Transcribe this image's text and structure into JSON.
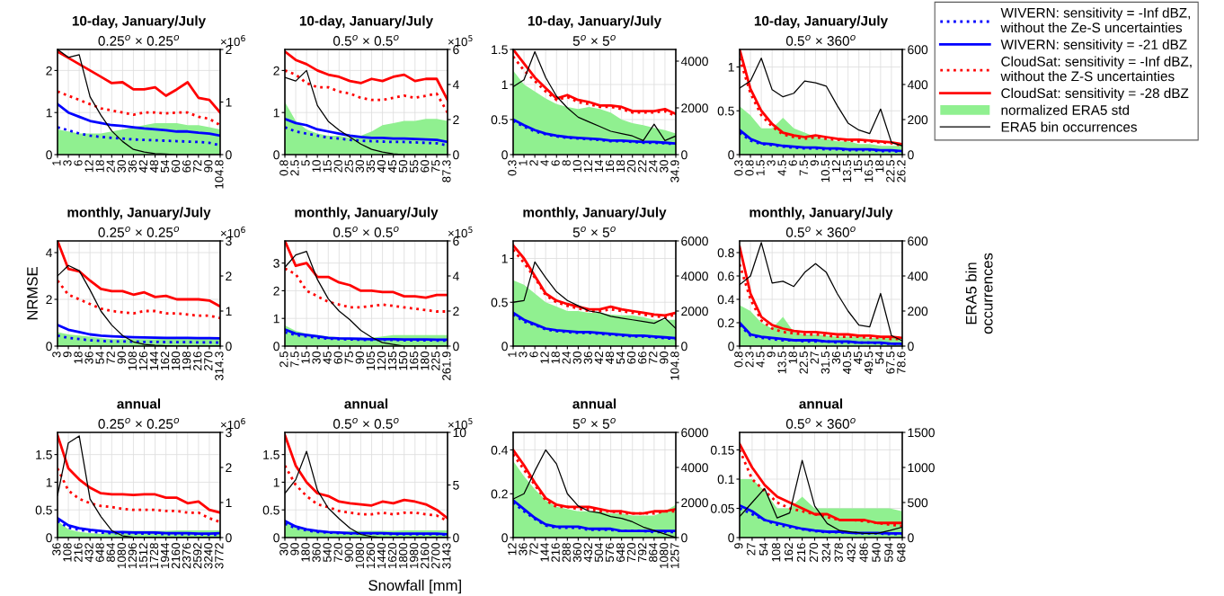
{
  "chart_data": [
    {
      "type": "line",
      "title": "10-day, January/July",
      "subtitle": "0.25$^{o}$ × 0.25$^{o}$",
      "annotations": [
        "×10$^{6}$"
      ],
      "categories": [
        "1",
        "3",
        "6",
        "12",
        "18",
        "24",
        "30",
        "36",
        "42",
        "48",
        "54",
        "60",
        "66",
        "72",
        "90",
        "104.8"
      ],
      "ylim": [
        0,
        2.5
      ],
      "yticks": [
        0,
        1,
        2
      ],
      "y2lim": [
        0,
        2
      ],
      "y2ticks": [
        0,
        1,
        2
      ],
      "grid": true,
      "series": [
        {
          "line_style": "dotted",
          "color": "#0000ff",
          "values": [
            0.65,
            0.58,
            0.5,
            0.45,
            0.42,
            0.4,
            0.38,
            0.36,
            0.35,
            0.34,
            0.33,
            0.32,
            0.31,
            0.3,
            0.28,
            0.22
          ]
        },
        {
          "line_style": "solid",
          "color": "#0000ff",
          "values": [
            1.2,
            1.0,
            0.9,
            0.8,
            0.75,
            0.7,
            0.68,
            0.65,
            0.62,
            0.6,
            0.58,
            0.55,
            0.55,
            0.52,
            0.5,
            0.45
          ]
        },
        {
          "line_style": "dotted",
          "color": "#ff0000",
          "values": [
            1.5,
            1.4,
            1.3,
            1.2,
            1.1,
            1.05,
            1.0,
            0.95,
            1.0,
            1.0,
            0.98,
            1.0,
            1.0,
            0.9,
            0.85,
            0.7
          ]
        },
        {
          "line_style": "solid",
          "color": "#ff0000",
          "values": [
            2.45,
            2.3,
            2.15,
            2.0,
            1.85,
            1.7,
            1.72,
            1.55,
            1.55,
            1.6,
            1.4,
            1.55,
            1.72,
            1.35,
            1.3,
            1.0
          ]
        },
        {
          "type": "area",
          "color": "#90f090",
          "values": [
            0.6,
            0.55,
            0.5,
            0.5,
            0.5,
            0.55,
            0.6,
            0.65,
            0.7,
            0.75,
            0.75,
            0.75,
            0.7,
            0.7,
            0.65,
            0.6
          ]
        },
        {
          "line_style": "solid",
          "color": "#000000",
          "axis": "y2",
          "values": [
            2.0,
            1.85,
            1.9,
            1.1,
            0.75,
            0.45,
            0.25,
            0.1,
            0.05,
            0.02,
            0.01,
            0,
            0,
            0,
            0,
            0
          ]
        }
      ]
    },
    {
      "type": "line",
      "title": "10-day, January/July",
      "subtitle": "0.5$^{o}$ × 0.5$^{o}$",
      "annotations": [
        "×10$^{5}$"
      ],
      "categories": [
        "0.8",
        "2.5",
        "5",
        "10",
        "15",
        "20",
        "25",
        "30",
        "35",
        "40",
        "45",
        "50",
        "55",
        "60",
        "75",
        "87.3"
      ],
      "ylim": [
        0,
        2.5
      ],
      "yticks": [
        0,
        1,
        2
      ],
      "y2lim": [
        0,
        6
      ],
      "y2ticks": [
        0,
        2,
        4,
        6
      ],
      "grid": true,
      "series": [
        {
          "line_style": "dotted",
          "color": "#0000ff",
          "values": [
            0.65,
            0.55,
            0.5,
            0.45,
            0.4,
            0.38,
            0.35,
            0.33,
            0.32,
            0.31,
            0.3,
            0.3,
            0.29,
            0.28,
            0.27,
            0.22
          ]
        },
        {
          "line_style": "solid",
          "color": "#0000ff",
          "values": [
            0.85,
            0.75,
            0.7,
            0.6,
            0.55,
            0.5,
            0.45,
            0.42,
            0.4,
            0.4,
            0.38,
            0.38,
            0.37,
            0.36,
            0.35,
            0.3
          ]
        },
        {
          "line_style": "dotted",
          "color": "#ff0000",
          "values": [
            2.0,
            1.9,
            1.7,
            1.6,
            1.6,
            1.5,
            1.45,
            1.35,
            1.3,
            1.3,
            1.35,
            1.4,
            1.35,
            1.4,
            1.45,
            1.0
          ]
        },
        {
          "line_style": "solid",
          "color": "#ff0000",
          "values": [
            2.45,
            2.25,
            2.15,
            2.0,
            1.9,
            1.85,
            1.75,
            1.7,
            1.8,
            1.75,
            1.85,
            1.9,
            1.75,
            1.8,
            1.8,
            1.3
          ]
        },
        {
          "type": "area",
          "color": "#90f090",
          "values": [
            1.25,
            0.8,
            0.6,
            0.5,
            0.45,
            0.45,
            0.4,
            0.45,
            0.55,
            0.7,
            0.75,
            0.8,
            0.8,
            0.85,
            0.85,
            0.8
          ]
        },
        {
          "line_style": "solid",
          "color": "#000000",
          "axis": "y2",
          "values": [
            4.4,
            4.2,
            4.8,
            2.8,
            1.9,
            1.4,
            1.0,
            0.6,
            0.3,
            0.15,
            0.05,
            0,
            0,
            0,
            0,
            0
          ]
        }
      ]
    },
    {
      "type": "line",
      "title": "10-day, January/July",
      "subtitle": "5$^{o}$ × 5$^{o}$",
      "categories": [
        "0.3",
        "1",
        "2",
        "4",
        "6",
        "8",
        "10",
        "12",
        "14",
        "16",
        "18",
        "20",
        "22",
        "24",
        "30",
        "34.9"
      ],
      "ylim": [
        0,
        1.5
      ],
      "yticks": [
        0,
        0.5,
        1,
        1.5
      ],
      "y2lim": [
        0,
        4500
      ],
      "y2ticks": [
        0,
        2000,
        4000
      ],
      "grid": true,
      "series": [
        {
          "line_style": "dotted",
          "color": "#0000ff",
          "values": [
            0.48,
            0.4,
            0.33,
            0.29,
            0.26,
            0.24,
            0.23,
            0.22,
            0.21,
            0.19,
            0.19,
            0.18,
            0.17,
            0.17,
            0.16,
            0.15
          ]
        },
        {
          "line_style": "solid",
          "color": "#0000ff",
          "values": [
            0.5,
            0.42,
            0.35,
            0.3,
            0.27,
            0.25,
            0.24,
            0.23,
            0.22,
            0.2,
            0.2,
            0.19,
            0.18,
            0.18,
            0.17,
            0.16
          ]
        },
        {
          "line_style": "dotted",
          "color": "#ff0000",
          "values": [
            1.4,
            1.2,
            1.05,
            0.9,
            0.78,
            0.82,
            0.75,
            0.72,
            0.68,
            0.68,
            0.65,
            0.6,
            0.6,
            0.6,
            0.62,
            0.55
          ]
        },
        {
          "line_style": "solid",
          "color": "#ff0000",
          "values": [
            1.5,
            1.3,
            1.1,
            0.95,
            0.8,
            0.85,
            0.78,
            0.75,
            0.7,
            0.7,
            0.68,
            0.62,
            0.62,
            0.62,
            0.65,
            0.58
          ]
        },
        {
          "type": "area",
          "color": "#90f090",
          "values": [
            1.2,
            1.0,
            0.9,
            0.8,
            0.72,
            0.68,
            0.65,
            0.68,
            0.65,
            0.6,
            0.5,
            0.45,
            0.42,
            0.38,
            0.35,
            0.3
          ]
        },
        {
          "line_style": "solid",
          "color": "#000000",
          "axis": "y2",
          "values": [
            2900,
            3200,
            4400,
            3300,
            2500,
            2000,
            1600,
            1400,
            1200,
            1000,
            900,
            800,
            600,
            1300,
            600,
            800
          ]
        }
      ]
    },
    {
      "type": "line",
      "title": "10-day, January/July",
      "subtitle": "0.5$^{o}$ × 360$^{o}$",
      "legend": "right",
      "categories": [
        "0.3",
        "0.8",
        "1.5",
        "3",
        "4.5",
        "6",
        "7.5",
        "9",
        "10.5",
        "12",
        "13.5",
        "15",
        "16.5",
        "18",
        "22.5",
        "26.2"
      ],
      "ylim": [
        0,
        1.2
      ],
      "yticks": [
        0,
        0.5,
        1
      ],
      "y2lim": [
        0,
        600
      ],
      "y2ticks": [
        0,
        200,
        400,
        600
      ],
      "grid": true,
      "series": [
        {
          "name": "WIVERN: sensitivity = -Inf dBZ,\nwithout the Ze-S uncertainties",
          "line_style": "dotted",
          "color": "#0000ff",
          "values": [
            0.25,
            0.16,
            0.12,
            0.11,
            0.09,
            0.08,
            0.07,
            0.07,
            0.06,
            0.06,
            0.05,
            0.05,
            0.05,
            0.04,
            0.04,
            0.03
          ]
        },
        {
          "name": "WIVERN: sensitivity = -21 dBZ",
          "line_style": "solid",
          "color": "#0000ff",
          "values": [
            0.28,
            0.18,
            0.13,
            0.12,
            0.1,
            0.09,
            0.08,
            0.08,
            0.07,
            0.07,
            0.06,
            0.06,
            0.06,
            0.05,
            0.05,
            0.04
          ]
        },
        {
          "name": "CloudSat: sensitivity = -Inf dBZ,\nwithout the Z-S uncertainties",
          "line_style": "dotted",
          "color": "#ff0000",
          "values": [
            1.1,
            0.7,
            0.45,
            0.32,
            0.23,
            0.2,
            0.18,
            0.2,
            0.18,
            0.17,
            0.16,
            0.15,
            0.15,
            0.14,
            0.13,
            0.1
          ]
        },
        {
          "name": "CloudSat: sensitivity = -28 dBZ",
          "line_style": "solid",
          "color": "#ff0000",
          "values": [
            1.2,
            0.75,
            0.5,
            0.35,
            0.25,
            0.22,
            0.2,
            0.22,
            0.2,
            0.18,
            0.17,
            0.17,
            0.16,
            0.15,
            0.14,
            0.12
          ]
        },
        {
          "name": "normalized ERA5 std",
          "type": "area",
          "color": "#90f090",
          "values": [
            0.55,
            0.45,
            0.3,
            0.3,
            0.42,
            0.3,
            0.25,
            0.2,
            0.18,
            0.15,
            0.15,
            0.12,
            0.12,
            0.1,
            0.1,
            0.1
          ]
        },
        {
          "name": "ERA5 bin occurrences",
          "line_style": "solid",
          "color": "#000000",
          "axis": "y2",
          "values": [
            380,
            420,
            550,
            370,
            330,
            350,
            420,
            410,
            390,
            280,
            180,
            140,
            120,
            260,
            70,
            50
          ]
        }
      ]
    },
    {
      "type": "line",
      "title": "monthly, January/July",
      "subtitle": "0.25$^{o}$ × 0.25$^{o}$",
      "ylabel": "NRMSE",
      "annotations": [
        "×10$^{6}$"
      ],
      "categories": [
        "3",
        "9",
        "18",
        "36",
        "54",
        "72",
        "90",
        "108",
        "126",
        "144",
        "162",
        "180",
        "198",
        "216",
        "270",
        "314.3"
      ],
      "ylim": [
        0,
        4.5
      ],
      "yticks": [
        0,
        2,
        4
      ],
      "y2lim": [
        0,
        3
      ],
      "y2ticks": [
        0,
        1,
        2,
        3
      ],
      "grid": true,
      "series": [
        {
          "line_style": "dotted",
          "color": "#0000ff",
          "values": [
            0.45,
            0.35,
            0.3,
            0.25,
            0.22,
            0.2,
            0.2,
            0.19,
            0.18,
            0.18,
            0.17,
            0.17,
            0.17,
            0.16,
            0.16,
            0.15
          ]
        },
        {
          "line_style": "solid",
          "color": "#0000ff",
          "values": [
            0.9,
            0.7,
            0.6,
            0.5,
            0.45,
            0.42,
            0.4,
            0.38,
            0.37,
            0.36,
            0.35,
            0.35,
            0.35,
            0.34,
            0.34,
            0.33
          ]
        },
        {
          "line_style": "dotted",
          "color": "#ff0000",
          "values": [
            2.8,
            2.2,
            2.0,
            1.8,
            1.6,
            1.5,
            1.45,
            1.4,
            1.5,
            1.5,
            1.4,
            1.4,
            1.35,
            1.3,
            1.3,
            1.2
          ]
        },
        {
          "line_style": "solid",
          "color": "#ff0000",
          "values": [
            4.5,
            3.3,
            3.2,
            2.8,
            2.45,
            2.35,
            2.35,
            2.2,
            2.3,
            2.1,
            2.15,
            2.0,
            2.0,
            2.0,
            1.95,
            1.7
          ]
        },
        {
          "type": "area",
          "color": "#90f090",
          "values": [
            0.6,
            0.5,
            0.45,
            0.4,
            0.35,
            0.3,
            0.3,
            0.3,
            0.3,
            0.3,
            0.35,
            0.35,
            0.35,
            0.35,
            0.35,
            0.35
          ]
        },
        {
          "line_style": "solid",
          "color": "#000000",
          "axis": "y2",
          "values": [
            2.0,
            2.3,
            2.15,
            1.6,
            1.0,
            0.6,
            0.3,
            0.12,
            0.05,
            0.02,
            0.01,
            0,
            0,
            0,
            0,
            0
          ]
        }
      ]
    },
    {
      "type": "line",
      "title": "monthly, January/July",
      "subtitle": "0.5$^{o}$ × 0.5$^{o}$",
      "annotations": [
        "×10$^{5}$"
      ],
      "categories": [
        "2.5",
        "7.5",
        "15",
        "30",
        "45",
        "60",
        "75",
        "90",
        "105",
        "120",
        "135",
        "150",
        "165",
        "180",
        "225",
        "261.9"
      ],
      "ylim": [
        0,
        3.8
      ],
      "yticks": [
        0,
        1,
        2,
        3
      ],
      "y2lim": [
        0,
        6
      ],
      "y2ticks": [
        0,
        2,
        4,
        6
      ],
      "grid": true,
      "series": [
        {
          "line_style": "dotted",
          "color": "#0000ff",
          "values": [
            0.5,
            0.4,
            0.35,
            0.3,
            0.27,
            0.25,
            0.24,
            0.23,
            0.22,
            0.22,
            0.22,
            0.21,
            0.21,
            0.21,
            0.2,
            0.2
          ]
        },
        {
          "line_style": "solid",
          "color": "#0000ff",
          "values": [
            0.6,
            0.45,
            0.4,
            0.35,
            0.3,
            0.28,
            0.27,
            0.26,
            0.25,
            0.25,
            0.25,
            0.24,
            0.24,
            0.24,
            0.23,
            0.23
          ]
        },
        {
          "line_style": "dotted",
          "color": "#ff0000",
          "values": [
            2.8,
            2.6,
            2.0,
            1.8,
            1.6,
            1.5,
            1.4,
            1.4,
            1.45,
            1.5,
            1.45,
            1.4,
            1.35,
            1.3,
            1.25,
            1.25
          ]
        },
        {
          "line_style": "solid",
          "color": "#ff0000",
          "values": [
            3.8,
            2.9,
            3.0,
            2.5,
            2.5,
            2.3,
            2.2,
            2.0,
            2.0,
            1.95,
            1.95,
            1.8,
            1.8,
            1.75,
            1.85,
            1.85
          ]
        },
        {
          "type": "area",
          "color": "#90f090",
          "values": [
            0.75,
            0.55,
            0.45,
            0.4,
            0.35,
            0.32,
            0.3,
            0.3,
            0.3,
            0.35,
            0.4,
            0.4,
            0.4,
            0.4,
            0.4,
            0.4
          ]
        },
        {
          "line_style": "solid",
          "color": "#000000",
          "axis": "y2",
          "values": [
            4.5,
            5.2,
            5.4,
            3.8,
            2.7,
            2.0,
            1.5,
            0.9,
            0.5,
            0.2,
            0.1,
            0,
            0,
            0,
            0,
            0
          ]
        }
      ]
    },
    {
      "type": "line",
      "title": "monthly, January/July",
      "subtitle": "5$^{o}$ × 5$^{o}$",
      "categories": [
        "1",
        "3",
        "6",
        "12",
        "18",
        "24",
        "30",
        "36",
        "42",
        "48",
        "54",
        "60",
        "66",
        "72",
        "90",
        "104.8"
      ],
      "ylim": [
        0,
        1.2
      ],
      "yticks": [
        0,
        0.5,
        1
      ],
      "y2lim": [
        0,
        6000
      ],
      "y2ticks": [
        0,
        2000,
        4000,
        6000
      ],
      "grid": true,
      "series": [
        {
          "line_style": "dotted",
          "color": "#0000ff",
          "values": [
            0.36,
            0.28,
            0.24,
            0.19,
            0.17,
            0.16,
            0.15,
            0.15,
            0.14,
            0.13,
            0.12,
            0.11,
            0.11,
            0.1,
            0.09,
            0.08
          ]
        },
        {
          "line_style": "solid",
          "color": "#0000ff",
          "values": [
            0.38,
            0.3,
            0.25,
            0.2,
            0.18,
            0.17,
            0.16,
            0.16,
            0.15,
            0.14,
            0.13,
            0.12,
            0.12,
            0.11,
            0.1,
            0.09
          ]
        },
        {
          "line_style": "dotted",
          "color": "#ff0000",
          "values": [
            1.1,
            0.95,
            0.78,
            0.58,
            0.5,
            0.46,
            0.43,
            0.4,
            0.4,
            0.42,
            0.4,
            0.38,
            0.36,
            0.34,
            0.33,
            0.36
          ]
        },
        {
          "line_style": "solid",
          "color": "#ff0000",
          "values": [
            1.15,
            1.0,
            0.8,
            0.6,
            0.52,
            0.48,
            0.45,
            0.42,
            0.42,
            0.45,
            0.42,
            0.4,
            0.38,
            0.36,
            0.35,
            0.38
          ]
        },
        {
          "type": "area",
          "color": "#90f090",
          "values": [
            0.75,
            0.7,
            0.6,
            0.5,
            0.45,
            0.4,
            0.4,
            0.38,
            0.38,
            0.36,
            0.35,
            0.35,
            0.33,
            0.3,
            0.3,
            0.3
          ]
        },
        {
          "line_style": "solid",
          "color": "#000000",
          "axis": "y2",
          "values": [
            2500,
            2600,
            4800,
            3900,
            3100,
            2600,
            2300,
            2000,
            1900,
            1700,
            1600,
            1500,
            1400,
            1300,
            1600,
            1000
          ]
        }
      ]
    },
    {
      "type": "line",
      "title": "monthly, January/July",
      "subtitle": "0.5$^{o}$ × 360$^{o}$",
      "y2label": "ERA5 bin\noccurrences",
      "categories": [
        "0.8",
        "2.3",
        "4.5",
        "9",
        "13.5",
        "18",
        "22.5",
        "27",
        "31.5",
        "36",
        "40.5",
        "45",
        "49.5",
        "54",
        "67.5",
        "78.6"
      ],
      "ylim": [
        0,
        0.9
      ],
      "yticks": [
        0,
        0.2,
        0.4,
        0.6,
        0.8
      ],
      "y2lim": [
        0,
        600
      ],
      "y2ticks": [
        0,
        200,
        400,
        600
      ],
      "grid": true,
      "series": [
        {
          "line_style": "dotted",
          "color": "#0000ff",
          "values": [
            0.18,
            0.09,
            0.07,
            0.06,
            0.05,
            0.05,
            0.04,
            0.04,
            0.04,
            0.03,
            0.03,
            0.03,
            0.03,
            0.02,
            0.02,
            0.02
          ]
        },
        {
          "line_style": "solid",
          "color": "#0000ff",
          "values": [
            0.2,
            0.1,
            0.08,
            0.07,
            0.06,
            0.05,
            0.05,
            0.05,
            0.04,
            0.04,
            0.04,
            0.03,
            0.03,
            0.03,
            0.02,
            0.02
          ]
        },
        {
          "line_style": "dotted",
          "color": "#ff0000",
          "values": [
            0.7,
            0.4,
            0.22,
            0.15,
            0.12,
            0.11,
            0.1,
            0.1,
            0.09,
            0.08,
            0.08,
            0.08,
            0.07,
            0.07,
            0.06,
            0.06
          ]
        },
        {
          "line_style": "solid",
          "color": "#ff0000",
          "values": [
            0.85,
            0.45,
            0.25,
            0.18,
            0.15,
            0.13,
            0.12,
            0.12,
            0.11,
            0.1,
            0.1,
            0.09,
            0.09,
            0.08,
            0.08,
            0.07
          ]
        },
        {
          "type": "area",
          "color": "#90f090",
          "values": [
            0.35,
            0.3,
            0.2,
            0.15,
            0.25,
            0.12,
            0.1,
            0.1,
            0.09,
            0.08,
            0.08,
            0.08,
            0.07,
            0.07,
            0.07,
            0.07
          ]
        },
        {
          "line_style": "solid",
          "color": "#000000",
          "axis": "y2",
          "values": [
            350,
            400,
            590,
            360,
            370,
            340,
            420,
            470,
            420,
            300,
            200,
            120,
            110,
            300,
            60,
            30
          ]
        }
      ]
    },
    {
      "type": "line",
      "title": "annual",
      "subtitle": "0.25$^{o}$ × 0.25$^{o}$",
      "annotations": [
        "×10$^{6}$"
      ],
      "categories": [
        "36",
        "108",
        "216",
        "432",
        "648",
        "864",
        "1080",
        "1296",
        "1512",
        "1728",
        "1944",
        "2160",
        "2376",
        "2592",
        "3240",
        "3772"
      ],
      "ylim": [
        0,
        1.9
      ],
      "yticks": [
        0,
        0.5,
        1,
        1.5
      ],
      "y2lim": [
        0,
        3
      ],
      "y2ticks": [
        0,
        1,
        2,
        3
      ],
      "grid": true,
      "series": [
        {
          "line_style": "dotted",
          "color": "#0000ff",
          "values": [
            0.3,
            0.18,
            0.14,
            0.11,
            0.09,
            0.08,
            0.08,
            0.07,
            0.07,
            0.07,
            0.06,
            0.06,
            0.06,
            0.06,
            0.05,
            0.05
          ]
        },
        {
          "line_style": "solid",
          "color": "#0000ff",
          "values": [
            0.35,
            0.22,
            0.17,
            0.14,
            0.12,
            0.1,
            0.1,
            0.09,
            0.09,
            0.09,
            0.08,
            0.08,
            0.08,
            0.07,
            0.07,
            0.08
          ]
        },
        {
          "line_style": "dotted",
          "color": "#ff0000",
          "values": [
            1.25,
            0.85,
            0.7,
            0.62,
            0.57,
            0.55,
            0.52,
            0.5,
            0.5,
            0.5,
            0.48,
            0.48,
            0.45,
            0.45,
            0.35,
            0.28
          ]
        },
        {
          "line_style": "solid",
          "color": "#ff0000",
          "values": [
            1.85,
            1.25,
            1.05,
            0.9,
            0.8,
            0.78,
            0.78,
            0.77,
            0.78,
            0.78,
            0.72,
            0.72,
            0.62,
            0.65,
            0.5,
            0.45
          ]
        },
        {
          "type": "area",
          "color": "#90f090",
          "values": [
            0.3,
            0.15,
            0.1,
            0.08,
            0.07,
            0.1,
            0.12,
            0.12,
            0.12,
            0.12,
            0.12,
            0.13,
            0.13,
            0.13,
            0.13,
            0.13
          ]
        },
        {
          "line_style": "solid",
          "color": "#000000",
          "axis": "y2",
          "values": [
            1.2,
            2.7,
            2.9,
            1.1,
            0.6,
            0.2,
            0.05,
            0.01,
            0,
            0,
            0,
            0,
            0,
            0,
            0,
            0
          ]
        }
      ]
    },
    {
      "type": "line",
      "title": "annual",
      "subtitle": "0.5$^{o}$ × 0.5$^{o}$",
      "xlabel": "Snowfall [mm]",
      "annotations": [
        "×10$^{5}$"
      ],
      "categories": [
        "30",
        "90",
        "180",
        "360",
        "540",
        "720",
        "900",
        "1080",
        "1260",
        "1440",
        "1620",
        "1800",
        "1980",
        "2160",
        "2700",
        "3143"
      ],
      "ylim": [
        0,
        1.9
      ],
      "yticks": [
        0,
        0.5,
        1,
        1.5
      ],
      "y2lim": [
        0,
        10
      ],
      "y2ticks": [
        0,
        5,
        10
      ],
      "grid": true,
      "series": [
        {
          "line_style": "dotted",
          "color": "#0000ff",
          "values": [
            0.25,
            0.17,
            0.13,
            0.1,
            0.09,
            0.08,
            0.07,
            0.07,
            0.07,
            0.07,
            0.06,
            0.06,
            0.06,
            0.06,
            0.06,
            0.05
          ]
        },
        {
          "line_style": "solid",
          "color": "#0000ff",
          "values": [
            0.3,
            0.2,
            0.15,
            0.12,
            0.1,
            0.09,
            0.08,
            0.08,
            0.08,
            0.08,
            0.07,
            0.07,
            0.07,
            0.07,
            0.07,
            0.06
          ]
        },
        {
          "line_style": "dotted",
          "color": "#ff0000",
          "values": [
            1.3,
            0.95,
            0.75,
            0.6,
            0.55,
            0.48,
            0.45,
            0.42,
            0.42,
            0.45,
            0.42,
            0.45,
            0.45,
            0.42,
            0.4,
            0.3
          ]
        },
        {
          "line_style": "solid",
          "color": "#ff0000",
          "values": [
            1.85,
            1.3,
            1.0,
            0.8,
            0.75,
            0.65,
            0.62,
            0.6,
            0.58,
            0.65,
            0.62,
            0.68,
            0.65,
            0.6,
            0.5,
            0.35
          ]
        },
        {
          "type": "area",
          "color": "#90f090",
          "values": [
            0.3,
            0.2,
            0.15,
            0.12,
            0.1,
            0.1,
            0.12,
            0.12,
            0.12,
            0.12,
            0.12,
            0.13,
            0.13,
            0.13,
            0.13,
            0.13
          ]
        },
        {
          "line_style": "solid",
          "color": "#000000",
          "axis": "y2",
          "values": [
            4.2,
            5.5,
            8.2,
            4.5,
            2.8,
            1.8,
            0.9,
            0.3,
            0.1,
            0,
            0,
            0,
            0,
            0,
            0,
            0
          ]
        }
      ]
    },
    {
      "type": "line",
      "title": "annual",
      "subtitle": "5$^{o}$ × 5$^{o}$",
      "categories": [
        "12",
        "36",
        "72",
        "144",
        "216",
        "288",
        "360",
        "432",
        "504",
        "576",
        "648",
        "720",
        "792",
        "864",
        "1080",
        "1257"
      ],
      "ylim": [
        0,
        0.48
      ],
      "yticks": [
        0,
        0.2,
        0.4
      ],
      "y2lim": [
        0,
        6000
      ],
      "y2ticks": [
        0,
        2000,
        4000,
        6000
      ],
      "grid": true,
      "series": [
        {
          "line_style": "dotted",
          "color": "#0000ff",
          "values": [
            0.16,
            0.12,
            0.085,
            0.055,
            0.045,
            0.045,
            0.045,
            0.035,
            0.035,
            0.035,
            0.03,
            0.03,
            0.03,
            0.025,
            0.025,
            0.025
          ]
        },
        {
          "line_style": "solid",
          "color": "#0000ff",
          "values": [
            0.17,
            0.13,
            0.09,
            0.06,
            0.05,
            0.05,
            0.05,
            0.04,
            0.04,
            0.04,
            0.03,
            0.03,
            0.03,
            0.03,
            0.03,
            0.03
          ]
        },
        {
          "line_style": "dotted",
          "color": "#ff0000",
          "values": [
            0.38,
            0.31,
            0.24,
            0.17,
            0.14,
            0.14,
            0.13,
            0.13,
            0.12,
            0.12,
            0.11,
            0.11,
            0.11,
            0.11,
            0.12,
            0.12
          ]
        },
        {
          "line_style": "solid",
          "color": "#ff0000",
          "values": [
            0.4,
            0.33,
            0.25,
            0.18,
            0.15,
            0.14,
            0.14,
            0.14,
            0.13,
            0.12,
            0.12,
            0.11,
            0.11,
            0.12,
            0.12,
            0.13
          ]
        },
        {
          "type": "area",
          "color": "#90f090",
          "values": [
            0.35,
            0.28,
            0.22,
            0.17,
            0.14,
            0.13,
            0.12,
            0.12,
            0.12,
            0.11,
            0.11,
            0.1,
            0.1,
            0.1,
            0.12,
            0.15
          ]
        },
        {
          "line_style": "solid",
          "color": "#000000",
          "axis": "y2",
          "values": [
            2200,
            2500,
            3800,
            5000,
            4200,
            2500,
            1800,
            1500,
            1400,
            1200,
            1100,
            900,
            600,
            400,
            200,
            0
          ]
        }
      ]
    },
    {
      "type": "line",
      "title": "annual",
      "subtitle": "0.5$^{o}$ × 360$^{o}$",
      "categories": [
        "9",
        "27",
        "54",
        "108",
        "162",
        "216",
        "270",
        "324",
        "378",
        "432",
        "486",
        "540",
        "594",
        "648"
      ],
      "ylim": [
        0,
        0.18
      ],
      "yticks": [
        0,
        0.05,
        0.1,
        0.15
      ],
      "y2lim": [
        0,
        1500
      ],
      "y2ticks": [
        0,
        500,
        1000,
        1500
      ],
      "grid": true,
      "series": [
        {
          "line_style": "dotted",
          "color": "#0000ff",
          "values": [
            0.05,
            0.04,
            0.03,
            0.022,
            0.018,
            0.014,
            0.011,
            0.009,
            0.009,
            0.008,
            0.007,
            0.007,
            0.006,
            0.006
          ]
        },
        {
          "line_style": "solid",
          "color": "#0000ff",
          "values": [
            0.055,
            0.045,
            0.03,
            0.025,
            0.02,
            0.015,
            0.012,
            0.01,
            0.01,
            0.008,
            0.008,
            0.008,
            0.007,
            0.007
          ]
        },
        {
          "line_style": "dotted",
          "color": "#ff0000",
          "values": [
            0.15,
            0.1,
            0.08,
            0.06,
            0.05,
            0.045,
            0.04,
            0.035,
            0.03,
            0.03,
            0.028,
            0.025,
            0.022,
            0.02
          ]
        },
        {
          "line_style": "solid",
          "color": "#ff0000",
          "values": [
            0.16,
            0.12,
            0.09,
            0.07,
            0.06,
            0.05,
            0.04,
            0.04,
            0.03,
            0.03,
            0.03,
            0.025,
            0.025,
            0.025
          ]
        },
        {
          "type": "area",
          "color": "#90f090",
          "values": [
            0.1,
            0.1,
            0.08,
            0.05,
            0.05,
            0.07,
            0.05,
            0.05,
            0.05,
            0.05,
            0.05,
            0.05,
            0.05,
            0.045
          ]
        },
        {
          "line_style": "solid",
          "color": "#000000",
          "axis": "y2",
          "values": [
            300,
            500,
            700,
            280,
            350,
            1100,
            450,
            200,
            100,
            80,
            60,
            60,
            100,
            150
          ]
        }
      ]
    }
  ]
}
